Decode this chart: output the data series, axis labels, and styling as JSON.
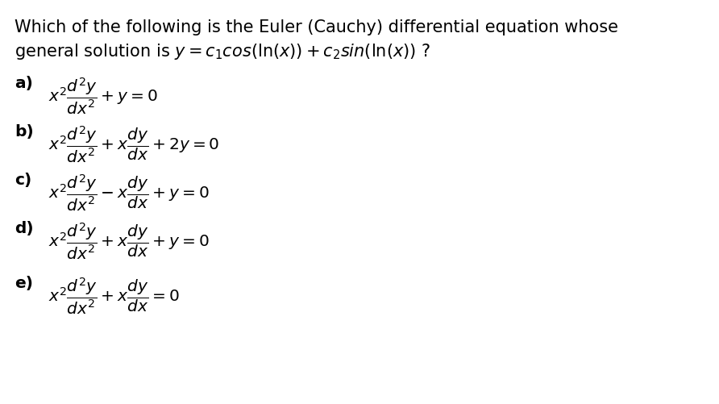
{
  "title_line1": "Which of the following is the Euler (Cauchy) differential equation whose",
  "title_line2_plain": "general solution is ",
  "title_line2_math": "$y = c_1\\mathrm{cos}(\\mathrm{ln}(x)) + c_2\\mathrm{sin}(\\mathrm{ln}(x))$ ?",
  "options": [
    {
      "label": "a) ",
      "equation": "$x^2\\dfrac{d^2y}{dx^2} + y = 0$"
    },
    {
      "label": "b) ",
      "equation": "$x^2\\dfrac{d^2y}{dx^2} + x\\dfrac{dy}{dx} + 2y = 0$"
    },
    {
      "label": "c) ",
      "equation": "$x^2\\dfrac{d^2y}{dx^2} - x\\dfrac{dy}{dx} + y = 0$"
    },
    {
      "label": "d) ",
      "equation": "$x^2\\dfrac{d^2y}{dx^2} + x\\dfrac{dy}{dx} + y = 0$"
    },
    {
      "label": "e) ",
      "equation": "$x^2\\dfrac{d^2y}{dx^2} + x\\dfrac{dy}{dx} = 0$"
    }
  ],
  "bg_color": "#ffffff",
  "text_color": "#000000",
  "fontsize_title": 15,
  "fontsize_options": 14.5,
  "fig_width": 8.92,
  "fig_height": 5.02,
  "dpi": 100
}
